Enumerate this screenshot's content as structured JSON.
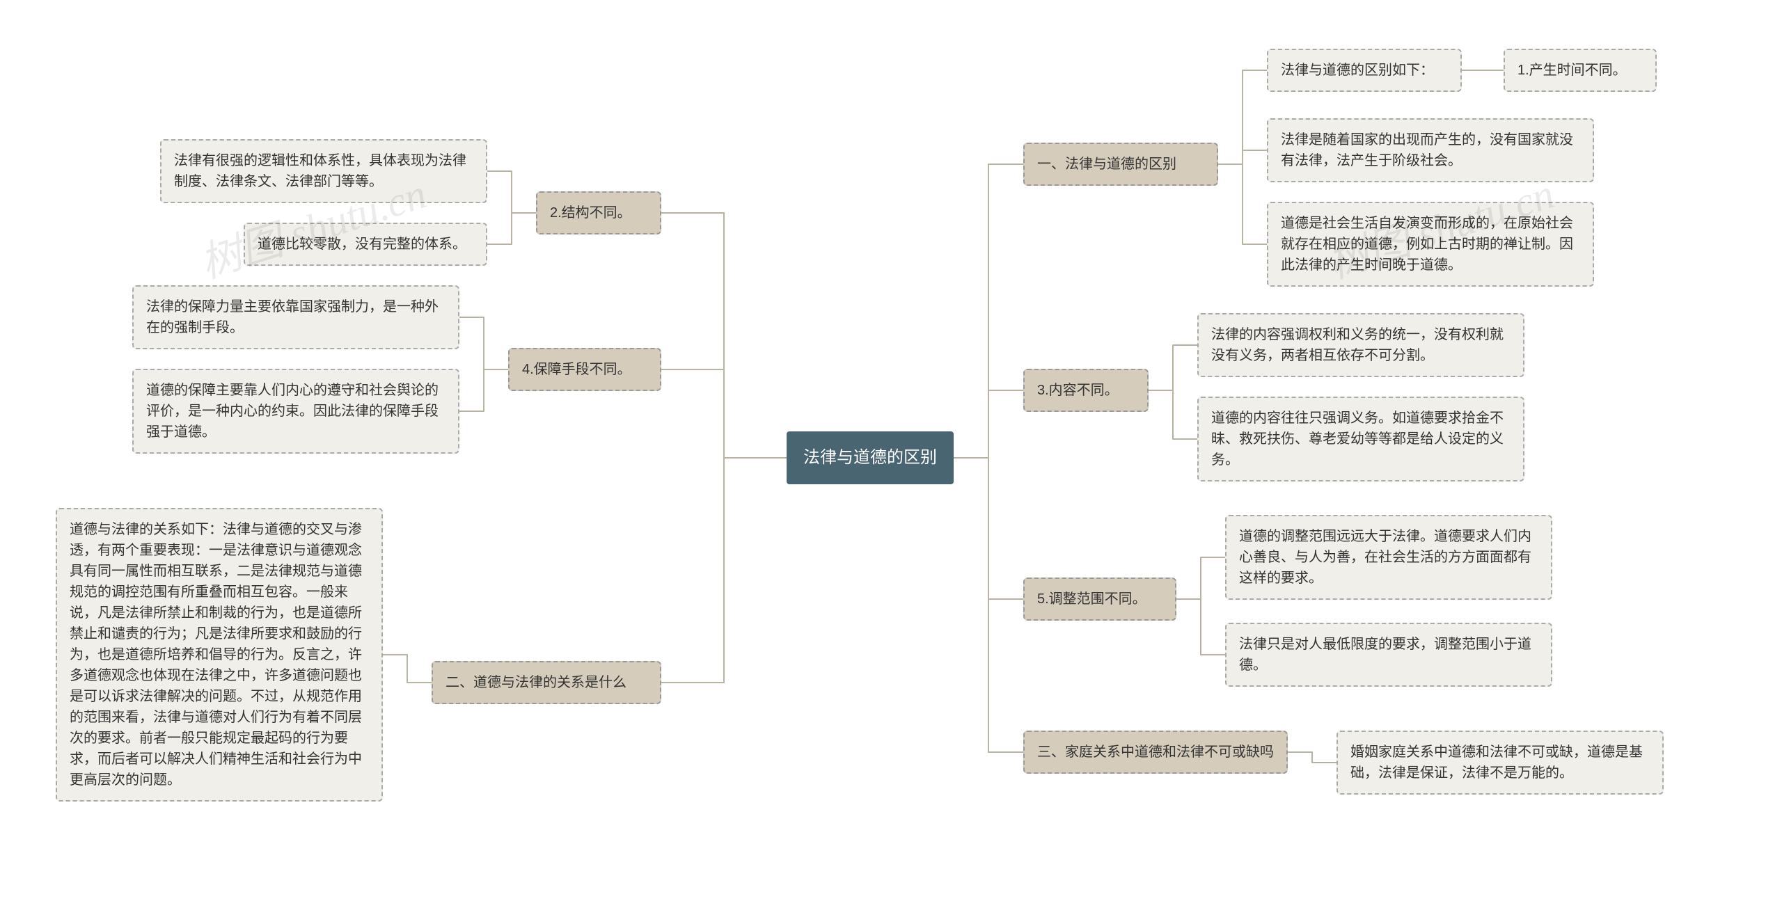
{
  "diagram": {
    "type": "mindmap",
    "background_color": "#ffffff",
    "connector_color": "#b8b2a3",
    "connector_width": 2,
    "root": {
      "text": "法律与道德的区别",
      "bg_color": "#4a6572",
      "text_color": "#ffffff",
      "fontsize": 24
    },
    "branch_style": {
      "bg_color": "#d6ccbc",
      "border_color": "#999999",
      "border_style": "dashed",
      "text_color": "#333333",
      "fontsize": 20
    },
    "leaf_style": {
      "bg_color": "#f1efe9",
      "border_color": "#aaaaaa",
      "border_style": "dashed",
      "text_color": "#333333",
      "fontsize": 20
    },
    "watermark": {
      "text": "树图 shutu.cn",
      "color": "rgba(0,0,0,0.08)",
      "fontsize": 60
    },
    "right_branches": [
      {
        "label": "一、法律与道德的区别",
        "children": [
          {
            "label": "法律与道德的区别如下：",
            "children": [
              {
                "label": "1.产生时间不同。"
              }
            ]
          },
          {
            "label": "法律是随着国家的出现而产生的，没有国家就没有法律，法产生于阶级社会。"
          },
          {
            "label": "道德是社会生活自发演变而形成的，在原始社会就存在相应的道德，例如上古时期的禅让制。因此法律的产生时间晚于道德。"
          }
        ]
      },
      {
        "label": "3.内容不同。",
        "children": [
          {
            "label": "法律的内容强调权利和义务的统一，没有权利就没有义务，两者相互依存不可分割。"
          },
          {
            "label": "道德的内容往往只强调义务。如道德要求拾金不昧、救死扶伤、尊老爱幼等等都是给人设定的义务。"
          }
        ]
      },
      {
        "label": "5.调整范围不同。",
        "children": [
          {
            "label": "道德的调整范围远远大于法律。道德要求人们内心善良、与人为善，在社会生活的方方面面都有这样的要求。"
          },
          {
            "label": "法律只是对人最低限度的要求，调整范围小于道德。"
          }
        ]
      },
      {
        "label": "三、家庭关系中道德和法律不可或缺吗",
        "children": [
          {
            "label": "婚姻家庭关系中道德和法律不可或缺，道德是基础，法律是保证，法律不是万能的。"
          }
        ]
      }
    ],
    "left_branches": [
      {
        "label": "2.结构不同。",
        "children": [
          {
            "label": "法律有很强的逻辑性和体系性，具体表现为法律制度、法律条文、法律部门等等。"
          },
          {
            "label": "道德比较零散，没有完整的体系。"
          }
        ]
      },
      {
        "label": "4.保障手段不同。",
        "children": [
          {
            "label": "法律的保障力量主要依靠国家强制力，是一种外在的强制手段。"
          },
          {
            "label": "道德的保障主要靠人们内心的遵守和社会舆论的评价，是一种内心的约束。因此法律的保障手段强于道德。"
          }
        ]
      },
      {
        "label": "二、道德与法律的关系是什么",
        "children": [
          {
            "label": "道德与法律的关系如下：法律与道德的交叉与渗透，有两个重要表现：一是法律意识与道德观念具有同一属性而相互联系，二是法律规范与道德规范的调控范围有所重叠而相互包容。一般来说，凡是法律所禁止和制裁的行为，也是道德所禁止和谴责的行为；凡是法律所要求和鼓励的行为，也是道德所培养和倡导的行为。反言之，许多道德观念也体现在法律之中，许多道德问题也是可以诉求法律解决的问题。不过，从规范作用的范围来看，法律与道德对人们行为有着不同层次的要求。前者一般只能规定最起码的行为要求，而后者可以解决人们精神生活和社会行为中更高层次的问题。"
          }
        ]
      }
    ]
  }
}
